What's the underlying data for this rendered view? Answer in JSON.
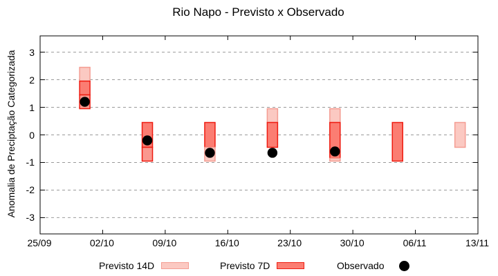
{
  "chart_data": {
    "type": "bar",
    "title": "Rio Napo - Previsto x Observado",
    "xlabel": "",
    "ylabel": "Anomalia de Preciptação Categorizada",
    "x_tick_labels": [
      "25/09",
      "02/10",
      "09/10",
      "16/10",
      "23/10",
      "30/10",
      "06/11",
      "13/11"
    ],
    "x_tick_days": [
      0,
      7,
      14,
      21,
      28,
      35,
      42,
      49
    ],
    "xlim_days": [
      0,
      49
    ],
    "y_ticks": [
      -3,
      -2,
      -1,
      0,
      1,
      2,
      3
    ],
    "ylim": [
      -3.59,
      3.59
    ],
    "grid": "horizontal-dashed",
    "legend_position": "bottom-center",
    "legend": {
      "items": [
        {
          "label": "Previsto 14D",
          "swatch": "pink-box"
        },
        {
          "label": "Previsto 7D",
          "swatch": "red-box"
        },
        {
          "label": "Observado",
          "swatch": "black-dot"
        }
      ]
    },
    "bars": [
      {
        "date": "30/09",
        "day": 5,
        "observed": 1.2,
        "segments": [
          {
            "from": 1.95,
            "to": 2.45,
            "color": "pink"
          },
          {
            "from": 1.45,
            "to": 1.95,
            "color": "red"
          },
          {
            "from": 0.95,
            "to": 1.45,
            "color": "salmon"
          }
        ]
      },
      {
        "date": "07/10",
        "day": 12,
        "observed": -0.2,
        "segments": [
          {
            "from": -0.45,
            "to": 0.45,
            "color": "red"
          },
          {
            "from": -0.95,
            "to": -0.45,
            "color": "salmon"
          }
        ]
      },
      {
        "date": "14/10",
        "day": 19,
        "observed": -0.65,
        "segments": [
          {
            "from": -0.45,
            "to": 0.45,
            "color": "red"
          },
          {
            "from": -0.95,
            "to": -0.45,
            "color": "pink"
          }
        ]
      },
      {
        "date": "21/10",
        "day": 26,
        "observed": -0.65,
        "segments": [
          {
            "from": 0.45,
            "to": 0.95,
            "color": "pink"
          },
          {
            "from": -0.45,
            "to": 0.45,
            "color": "red"
          }
        ]
      },
      {
        "date": "28/10",
        "day": 33,
        "observed": -0.6,
        "segments": [
          {
            "from": 0.45,
            "to": 0.95,
            "color": "pink"
          },
          {
            "from": -0.85,
            "to": 0.45,
            "color": "red"
          },
          {
            "from": -0.95,
            "to": -0.85,
            "color": "pink"
          }
        ]
      },
      {
        "date": "04/11",
        "day": 40,
        "observed": null,
        "segments": [
          {
            "from": -0.95,
            "to": 0.45,
            "color": "red"
          }
        ]
      },
      {
        "date": "11/11",
        "day": 47,
        "observed": null,
        "segments": [
          {
            "from": -0.45,
            "to": 0.45,
            "color": "pink"
          }
        ]
      }
    ]
  },
  "colors": {
    "pink_fill": "#fbc9c2",
    "pink_border": "#f49c92",
    "salmon_fill": "#fa988f",
    "salmon_border": "#ee1b10",
    "red_fill": "#fb7d72",
    "red_border": "#ee1b10",
    "observed_dot": "#000000",
    "grid": "#999999",
    "axis": "#000000",
    "background": "#ffffff"
  }
}
